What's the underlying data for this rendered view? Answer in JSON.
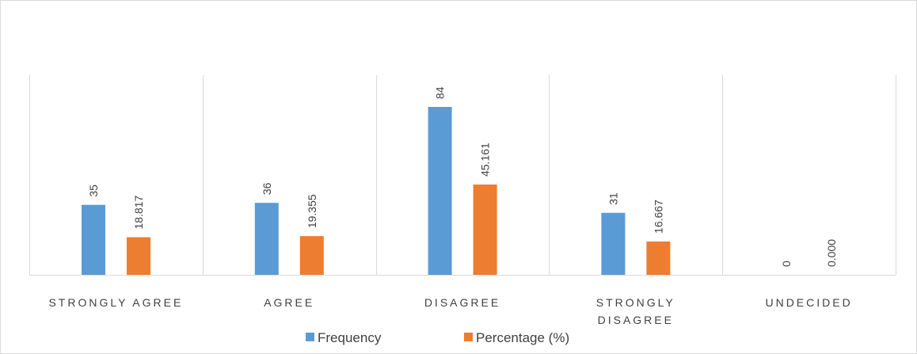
{
  "chart_data": {
    "type": "bar",
    "title": "",
    "xlabel": "",
    "ylabel": "",
    "ylim": [
      0,
      90
    ],
    "grid": "vertical-category-separators",
    "legend_position": "bottom",
    "categories": [
      [
        "STRONGLY AGREE"
      ],
      [
        "AGREE"
      ],
      [
        "DISAGREE"
      ],
      [
        "STRONGLY",
        "DISAGREE"
      ],
      [
        "UNDECIDED"
      ]
    ],
    "series": [
      {
        "name": "Frequency",
        "color": "#5b9bd5",
        "values": [
          35,
          36,
          84,
          31,
          0
        ],
        "labels": [
          "35",
          "36",
          "84",
          "31",
          "0"
        ]
      },
      {
        "name": "Percentage (%)",
        "color": "#ed7d31",
        "values": [
          18.817,
          19.355,
          45.161,
          16.667,
          0.0
        ],
        "labels": [
          "18.817",
          "19.355",
          "45.161",
          "16.667",
          "0.000"
        ]
      }
    ]
  }
}
